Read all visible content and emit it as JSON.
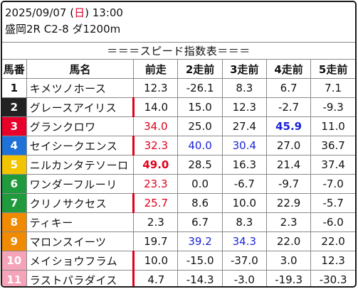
{
  "header": {
    "date": "2025/09/07",
    "day_open": " (",
    "day": "日",
    "day_close": ")",
    "time": " 13:00",
    "race_info": "盛岡2R C2-8 ダ1200m"
  },
  "subtitle": "＝＝＝スピード指数表＝＝＝",
  "columns": [
    "馬番",
    "馬名",
    "前走",
    "2走前",
    "3走前",
    "4走前",
    "5走前"
  ],
  "colors": {
    "red": "#e0001a",
    "blue": "#1b25d6",
    "frames": [
      "#ffffff",
      "#222222",
      "#e8002a",
      "#1f72d8",
      "#f2c400",
      "#1f9a3c",
      "#f08a00",
      "#f5a3b8"
    ]
  },
  "rows": [
    {
      "num": "1",
      "name": "キメツノホース",
      "vals": [
        "12.3",
        "-26.1",
        "8.3",
        "6.7",
        "7.1"
      ],
      "frame_bg": "#ffffff",
      "frame_fg": "#111111",
      "marked": false,
      "styles": [
        "",
        "",
        "",
        "",
        ""
      ]
    },
    {
      "num": "2",
      "name": "グレースアイリス",
      "vals": [
        "14.0",
        "15.0",
        "12.3",
        "-2.7",
        "-9.3"
      ],
      "frame_bg": "#222222",
      "frame_fg": "#ffffff",
      "marked": true,
      "styles": [
        "",
        "",
        "",
        "",
        ""
      ]
    },
    {
      "num": "3",
      "name": "グランクロワ",
      "vals": [
        "34.0",
        "25.0",
        "27.4",
        "45.9",
        "11.0"
      ],
      "frame_bg": "#e8002a",
      "frame_fg": "#ffffff",
      "marked": false,
      "styles": [
        "red",
        "",
        "",
        "blue bold",
        ""
      ]
    },
    {
      "num": "4",
      "name": "セイシークエンス",
      "vals": [
        "32.3",
        "40.0",
        "30.4",
        "27.0",
        "36.7"
      ],
      "frame_bg": "#1f72d8",
      "frame_fg": "#ffffff",
      "marked": true,
      "styles": [
        "red",
        "blue",
        "blue",
        "",
        ""
      ]
    },
    {
      "num": "5",
      "name": "ニルカンタテソーロ",
      "vals": [
        "49.0",
        "28.5",
        "16.3",
        "21.4",
        "37.4"
      ],
      "frame_bg": "#f2c400",
      "frame_fg": "#ffffff",
      "marked": false,
      "styles": [
        "red bold",
        "",
        "",
        "",
        ""
      ]
    },
    {
      "num": "6",
      "name": "ワンダーフルーリ",
      "vals": [
        "23.3",
        "0.0",
        "-6.7",
        "-9.7",
        "-7.0"
      ],
      "frame_bg": "#1f9a3c",
      "frame_fg": "#ffffff",
      "marked": false,
      "styles": [
        "red",
        "",
        "",
        "",
        ""
      ]
    },
    {
      "num": "7",
      "name": "クリノサクセス",
      "vals": [
        "25.7",
        "8.6",
        "10.0",
        "22.9",
        "-5.7"
      ],
      "frame_bg": "#1f9a3c",
      "frame_fg": "#ffffff",
      "marked": true,
      "styles": [
        "red",
        "",
        "",
        "",
        ""
      ]
    },
    {
      "num": "8",
      "name": "ティキー",
      "vals": [
        "2.3",
        "6.7",
        "8.3",
        "2.3",
        "-6.0"
      ],
      "frame_bg": "#f08a00",
      "frame_fg": "#ffffff",
      "marked": false,
      "styles": [
        "",
        "",
        "",
        "",
        ""
      ]
    },
    {
      "num": "9",
      "name": "マロンスイーツ",
      "vals": [
        "19.7",
        "39.2",
        "34.3",
        "22.0",
        "22.0"
      ],
      "frame_bg": "#f08a00",
      "frame_fg": "#ffffff",
      "marked": false,
      "styles": [
        "",
        "blue",
        "blue",
        "",
        ""
      ]
    },
    {
      "num": "10",
      "name": "メイショウフラム",
      "vals": [
        "10.0",
        "-15.0",
        "-37.0",
        "3.0",
        "12.3"
      ],
      "frame_bg": "#f5a3b8",
      "frame_fg": "#ffffff",
      "marked": true,
      "styles": [
        "",
        "",
        "",
        "",
        ""
      ]
    },
    {
      "num": "11",
      "name": "ラストパラダイス",
      "vals": [
        "4.7",
        "-14.3",
        "-3.0",
        "-19.3",
        "-30.3"
      ],
      "frame_bg": "#f5a3b8",
      "frame_fg": "#ffffff",
      "marked": true,
      "styles": [
        "",
        "",
        "",
        "",
        ""
      ]
    }
  ]
}
